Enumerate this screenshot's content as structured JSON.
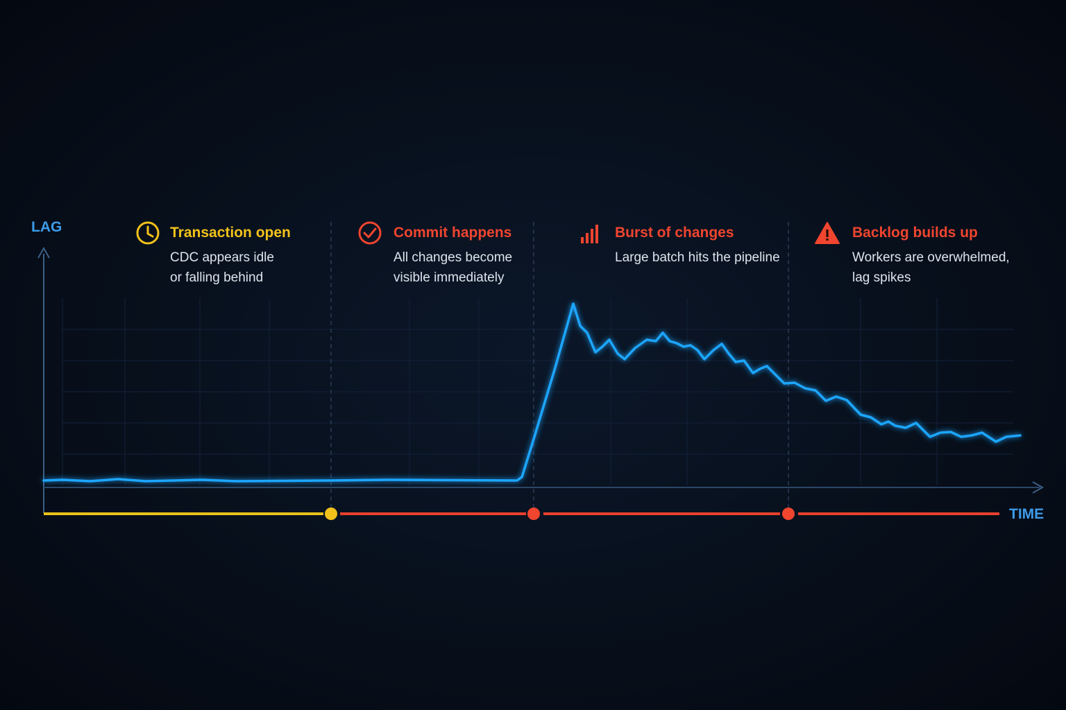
{
  "axes": {
    "y_label": "LAG",
    "x_label": "TIME"
  },
  "phases": [
    {
      "title": "Transaction open",
      "description": [
        "CDC appears idle",
        "or falling behind"
      ]
    },
    {
      "title": "Commit happens",
      "description": [
        "All changes become",
        "visible immediately"
      ]
    },
    {
      "title": "Burst of changes",
      "description": [
        "Large batch hits the pipeline"
      ]
    },
    {
      "title": "Backlog builds up",
      "description": [
        "Workers are overwhelmed,",
        "lag spikes"
      ]
    }
  ]
}
